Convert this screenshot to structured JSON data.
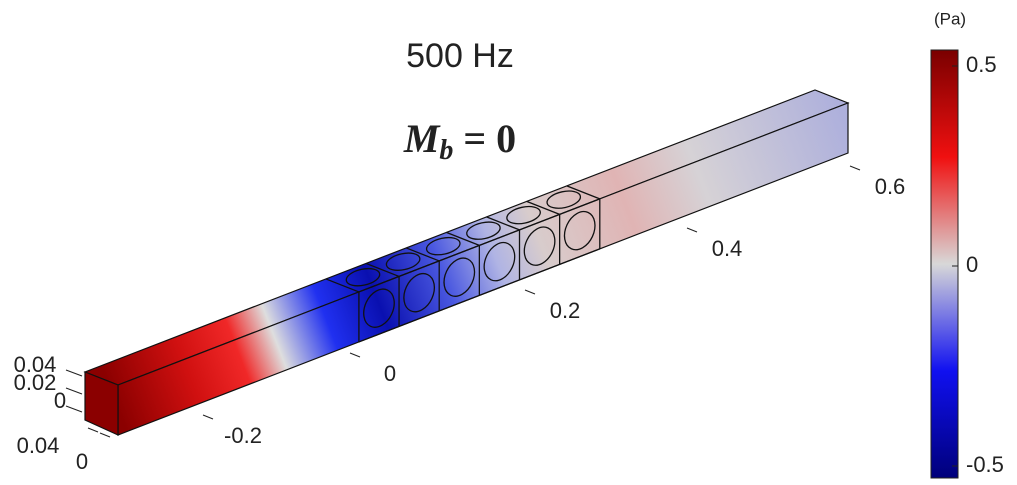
{
  "title": "500 Hz",
  "annotation": {
    "symbol": "M",
    "subscript": "b",
    "rest": "= 0"
  },
  "x_axis": {
    "ticks": [
      "-0.2",
      "0",
      "0.2",
      "0.4",
      "0.6"
    ]
  },
  "y_axis": {
    "ticks": [
      "0.04",
      "0"
    ]
  },
  "z_axis": {
    "ticks": [
      "0.04",
      "0.02",
      "0"
    ]
  },
  "colorbar": {
    "unit": "(Pa)",
    "clim": [
      -0.53,
      0.54
    ],
    "ticks": [
      0.5,
      0,
      -0.5
    ]
  }
}
